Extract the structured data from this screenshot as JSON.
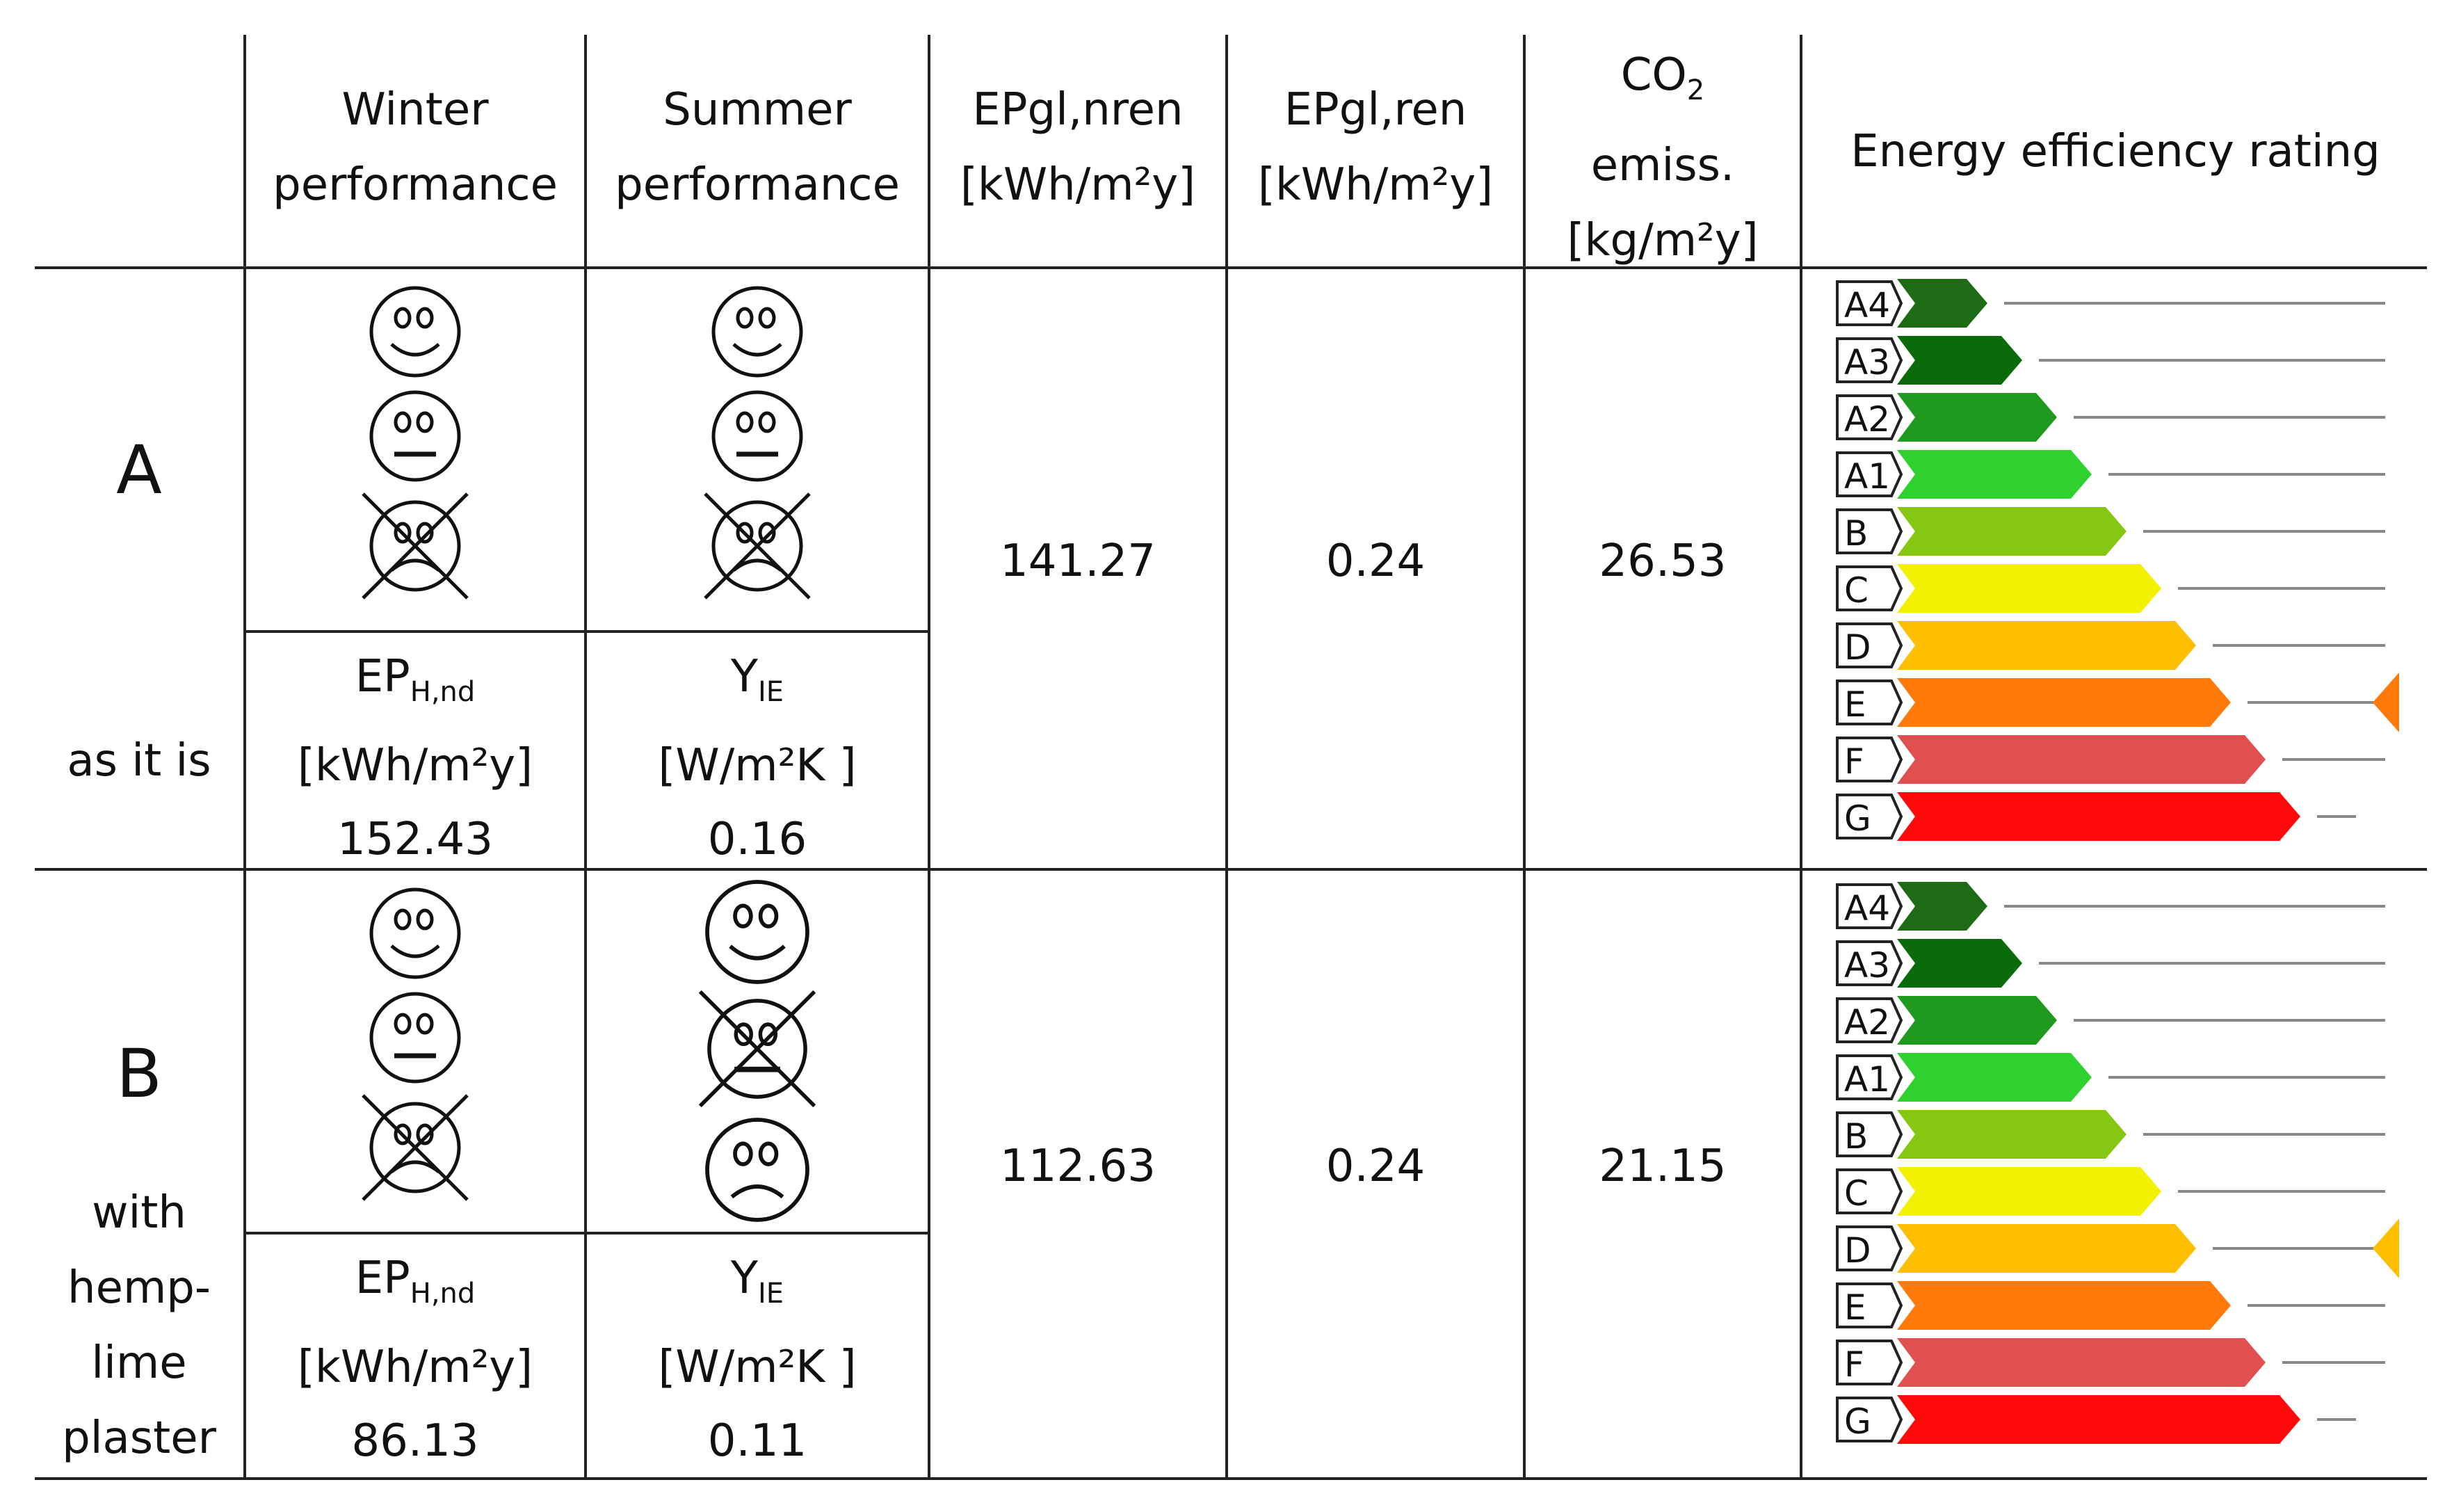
{
  "header": {
    "winter": {
      "line1": "Winter",
      "line2": "performance"
    },
    "summer": {
      "line1": "Summer",
      "line2": "performance"
    },
    "epgl_nren": {
      "line1": "EPgl,nren",
      "line2": "[kWh/m²y]"
    },
    "epgl_ren": {
      "line1": "EPgl,ren",
      "line2": "[kWh/m²y]"
    },
    "co2": {
      "line1a": "CO",
      "line1sub": "2",
      "line2": "emiss.",
      "line3": "[kg/m²y]"
    },
    "rating": "Energy efficiency rating"
  },
  "rows": [
    {
      "scenario": "A",
      "description": [
        "as it is"
      ],
      "winter_faces": [
        "happy",
        "neutral",
        "sad-crossed"
      ],
      "summer_faces": [
        "happy",
        "neutral",
        "sad-crossed"
      ],
      "ep_label": {
        "main": "EP",
        "sub": "H,nd",
        "unit": "[kWh/m²y]",
        "value": "152.43"
      },
      "y_label": {
        "main": "Y",
        "sub": "IE",
        "unit": "[W/m²K ]",
        "value": "0.16"
      },
      "epgl_nren": "141.27",
      "epgl_ren": "0.24",
      "co2": "26.53",
      "rating": "E"
    },
    {
      "scenario": "B",
      "description": [
        "with",
        "hemp-",
        "lime",
        "plaster"
      ],
      "winter_faces": [
        "happy",
        "neutral",
        "sad-crossed"
      ],
      "summer_faces": [
        "happy",
        "neutral-crossed",
        "sad"
      ],
      "ep_label": {
        "main": "EP",
        "sub": "H,nd",
        "unit": "[kWh/m²y]",
        "value": "86.13"
      },
      "y_label": {
        "main": "Y",
        "sub": "IE",
        "unit": "[W/m²K ]",
        "value": "0.11"
      },
      "epgl_nren": "112.63",
      "epgl_ren": "0.24",
      "co2": "21.15",
      "rating": "D"
    }
  ],
  "classes": [
    {
      "label": "A4",
      "color": "#1d6b14"
    },
    {
      "label": "A3",
      "color": "#0a6b0a"
    },
    {
      "label": "A2",
      "color": "#1f9a1f"
    },
    {
      "label": "A1",
      "color": "#2ed12e"
    },
    {
      "label": "B",
      "color": "#86c714"
    },
    {
      "label": "C",
      "color": "#f2f200"
    },
    {
      "label": "D",
      "color": "#ffbf00"
    },
    {
      "label": "E",
      "color": "#ff7a0a"
    },
    {
      "label": "F",
      "color": "#e05050"
    },
    {
      "label": "G",
      "color": "#ff0a0a"
    }
  ]
}
